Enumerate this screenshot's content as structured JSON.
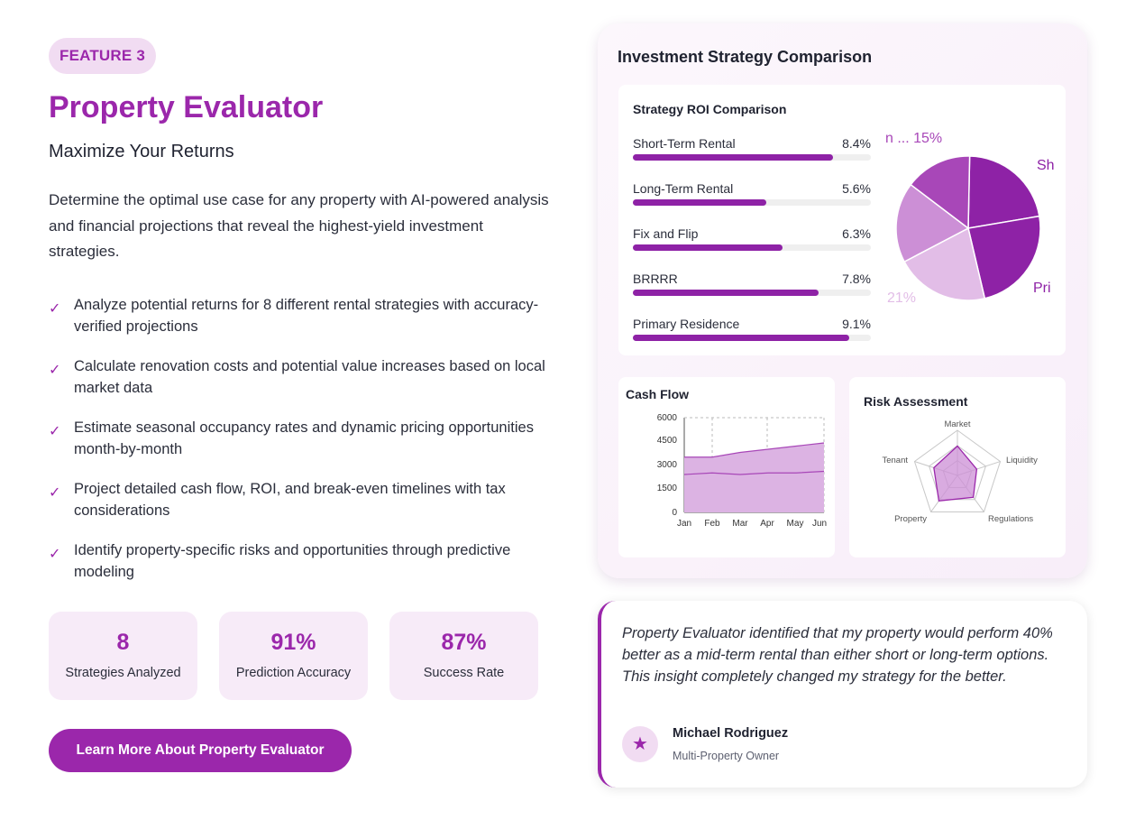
{
  "badge": "FEATURE 3",
  "title": "Property Evaluator",
  "subtitle": "Maximize Your Returns",
  "description": "Determine the optimal use case for any property with AI-powered analysis and financial projections that reveal the highest-yield investment strategies.",
  "features": [
    "Analyze potential returns for 8 different rental strategies with accuracy-verified projections",
    "Calculate renovation costs and potential value increases based on local market data",
    "Estimate seasonal occupancy rates and dynamic pricing opportunities month-by-month",
    "Project detailed cash flow, ROI, and break-even timelines with tax considerations",
    "Identify property-specific risks and opportunities through predictive modeling"
  ],
  "check_glyph": "✓",
  "stats": [
    {
      "value": "8",
      "label": "Strategies Analyzed"
    },
    {
      "value": "91%",
      "label": "Prediction Accuracy"
    },
    {
      "value": "87%",
      "label": "Success Rate"
    }
  ],
  "cta_label": "Learn More About Property Evaluator",
  "panel_title": "Investment Strategy Comparison",
  "roi": {
    "title": "Strategy ROI Comparison",
    "items": [
      {
        "name": "Short-Term Rental",
        "value": "8.4%",
        "pct": 84
      },
      {
        "name": "Long-Term Rental",
        "value": "5.6%",
        "pct": 56
      },
      {
        "name": "Fix and Flip",
        "value": "6.3%",
        "pct": 63
      },
      {
        "name": "BRRRR",
        "value": "7.8%",
        "pct": 78
      },
      {
        "name": "Primary Residence",
        "value": "9.1%",
        "pct": 91
      }
    ],
    "pie_labels": {
      "top": "n ... 15%",
      "right_top": "Sh",
      "right_bottom": "Pri",
      "bottom_left": "21%"
    }
  },
  "cashflow": {
    "title": "Cash Flow",
    "months": [
      "Jan",
      "Feb",
      "Mar",
      "Apr",
      "May",
      "Jun"
    ],
    "y_ticks": [
      "6000",
      "4500",
      "3000",
      "1500",
      "0"
    ]
  },
  "risk": {
    "title": "Risk Assessment",
    "axes": [
      "Market",
      "Liquidity",
      "Regulations",
      "Property",
      "Tenant"
    ]
  },
  "chart_data": [
    {
      "type": "pie",
      "title": "Strategy ROI Comparison",
      "visible_labels": [
        "n ... 15%",
        "Sh",
        "Pri",
        "21%"
      ],
      "slices": [
        {
          "label": "Short-Term Rental",
          "value": 22,
          "color": "#8e22a6"
        },
        {
          "label": "Primary Residence",
          "value": 24,
          "color": "#8e22a6"
        },
        {
          "label": "",
          "value": 21,
          "color": "#e2bde7"
        },
        {
          "label": "",
          "value": 18,
          "color": "#cc8fd6"
        },
        {
          "label": "",
          "value": 15,
          "color": "#a847b8"
        }
      ]
    },
    {
      "type": "area",
      "title": "Cash Flow",
      "categories": [
        "Jan",
        "Feb",
        "Mar",
        "Apr",
        "May",
        "Jun"
      ],
      "ylim": [
        0,
        6000
      ],
      "series": [
        {
          "name": "upper",
          "values": [
            3500,
            3500,
            3800,
            4000,
            4200,
            4400
          ]
        },
        {
          "name": "lower",
          "values": [
            2400,
            2500,
            2400,
            2500,
            2500,
            2600
          ]
        }
      ]
    },
    {
      "type": "radar",
      "title": "Risk Assessment",
      "axes": [
        "Market",
        "Liquidity",
        "Regulations",
        "Property",
        "Tenant"
      ],
      "values": [
        0.65,
        0.45,
        0.6,
        0.7,
        0.55
      ],
      "max": 1
    }
  ],
  "testimonial": {
    "quote": "Property Evaluator identified that my property would perform 40% better as a mid-term rental than either short or long-term options. This insight completely changed my strategy for the better.",
    "author": "Michael Rodriguez",
    "role": "Multi-Property Owner",
    "avatar_glyph": "★"
  },
  "colors": {
    "accent": "#9b27ab",
    "accent_light": "#f1dcf2",
    "bar": "#8e22a6"
  }
}
